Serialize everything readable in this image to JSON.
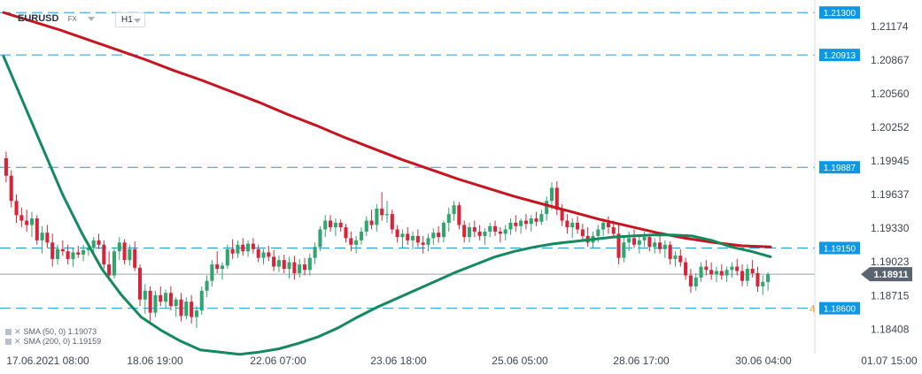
{
  "header": {
    "symbol": "EURUSD",
    "market": "FX",
    "timeframe": "H1"
  },
  "indicators": [
    {
      "label": "SMA (50, 0)",
      "value": "1.19073",
      "color": "#128a5e"
    },
    {
      "label": "SMA (200, 0)",
      "value": "1.19159",
      "color": "#c8141e"
    }
  ],
  "chart_data": {
    "type": "candlestick",
    "title": "EURUSD",
    "ylim": [
      1.1825,
      1.2135
    ],
    "y_ticks": [
      "1.21174",
      "1.20867",
      "1.20560",
      "1.20252",
      "1.19945",
      "1.19637",
      "1.19330",
      "1.19023",
      "1.18715",
      "1.18408"
    ],
    "x_ticks": [
      "17.06.2021  08:00",
      "18.06  19:00",
      "22.06  07:00",
      "23.06  18:00",
      "25.06  05:00",
      "28.06  17:00",
      "30.06  04:00",
      "01.07  15:00"
    ],
    "current_price": "1.18911",
    "horizontal_levels": [
      "1.21300",
      "1.20913",
      "1.19887",
      "1.19150",
      "1.18600"
    ],
    "order_marker": "4",
    "candles_ohlc": [
      [
        1.1997,
        1.2003,
        1.1975,
        1.1981
      ],
      [
        1.1981,
        1.1986,
        1.1952,
        1.1958
      ],
      [
        1.1958,
        1.1964,
        1.1938,
        1.1945
      ],
      [
        1.1945,
        1.1952,
        1.1934,
        1.194
      ],
      [
        1.194,
        1.195,
        1.193,
        1.1936
      ],
      [
        1.1936,
        1.1948,
        1.1925,
        1.1942
      ],
      [
        1.1942,
        1.1945,
        1.1918,
        1.1922
      ],
      [
        1.1922,
        1.1935,
        1.191,
        1.1929
      ],
      [
        1.1929,
        1.1936,
        1.1915,
        1.192
      ],
      [
        1.192,
        1.1928,
        1.1898,
        1.1905
      ],
      [
        1.1905,
        1.1918,
        1.19,
        1.1914
      ],
      [
        1.1914,
        1.1922,
        1.1908,
        1.1912
      ],
      [
        1.1912,
        1.1918,
        1.19,
        1.1905
      ],
      [
        1.1905,
        1.1915,
        1.1898,
        1.1911
      ],
      [
        1.1911,
        1.1917,
        1.1906,
        1.1909
      ],
      [
        1.1909,
        1.1918,
        1.1903,
        1.1913
      ],
      [
        1.1913,
        1.192,
        1.1908,
        1.1915
      ],
      [
        1.1915,
        1.1925,
        1.191,
        1.1922
      ],
      [
        1.1922,
        1.1928,
        1.1914,
        1.1918
      ],
      [
        1.1918,
        1.1922,
        1.1896,
        1.19
      ],
      [
        1.19,
        1.1912,
        1.1885,
        1.189
      ],
      [
        1.189,
        1.1916,
        1.1887,
        1.1912
      ],
      [
        1.1912,
        1.1925,
        1.1904,
        1.192
      ],
      [
        1.192,
        1.1923,
        1.19,
        1.1904
      ],
      [
        1.1904,
        1.1918,
        1.1899,
        1.1914
      ],
      [
        1.1914,
        1.1921,
        1.1894,
        1.1897
      ],
      [
        1.1897,
        1.19,
        1.1862,
        1.1868
      ],
      [
        1.1868,
        1.1882,
        1.1855,
        1.1876
      ],
      [
        1.1876,
        1.188,
        1.1848,
        1.1856
      ],
      [
        1.1856,
        1.1876,
        1.1852,
        1.1872
      ],
      [
        1.1872,
        1.188,
        1.1862,
        1.1866
      ],
      [
        1.1866,
        1.1877,
        1.186,
        1.1874
      ],
      [
        1.1874,
        1.188,
        1.1858,
        1.1862
      ],
      [
        1.1862,
        1.187,
        1.1852,
        1.1868
      ],
      [
        1.1868,
        1.1874,
        1.1848,
        1.1853
      ],
      [
        1.1853,
        1.187,
        1.185,
        1.1866
      ],
      [
        1.1866,
        1.1872,
        1.1846,
        1.1852
      ],
      [
        1.1852,
        1.1862,
        1.1842,
        1.1858
      ],
      [
        1.1858,
        1.188,
        1.1854,
        1.1876
      ],
      [
        1.1876,
        1.189,
        1.187,
        1.1885
      ],
      [
        1.1885,
        1.1904,
        1.188,
        1.19
      ],
      [
        1.19,
        1.1912,
        1.1892,
        1.1896
      ],
      [
        1.1896,
        1.1902,
        1.1886,
        1.1899
      ],
      [
        1.1899,
        1.1918,
        1.1896,
        1.1914
      ],
      [
        1.1914,
        1.1923,
        1.1905,
        1.191
      ],
      [
        1.191,
        1.1922,
        1.1906,
        1.1918
      ],
      [
        1.1918,
        1.1924,
        1.1908,
        1.1912
      ],
      [
        1.1912,
        1.1922,
        1.1907,
        1.1919
      ],
      [
        1.1919,
        1.1924,
        1.191,
        1.1914
      ],
      [
        1.1914,
        1.1918,
        1.1902,
        1.1906
      ],
      [
        1.1906,
        1.1914,
        1.19,
        1.1911
      ],
      [
        1.1911,
        1.1917,
        1.1903,
        1.1907
      ],
      [
        1.1907,
        1.1913,
        1.1894,
        1.1898
      ],
      [
        1.1898,
        1.1908,
        1.1893,
        1.1904
      ],
      [
        1.1904,
        1.1909,
        1.1892,
        1.1896
      ],
      [
        1.1896,
        1.1907,
        1.1887,
        1.1902
      ],
      [
        1.1902,
        1.1908,
        1.1886,
        1.1892
      ],
      [
        1.1892,
        1.1905,
        1.1888,
        1.19
      ],
      [
        1.19,
        1.1906,
        1.189,
        1.1895
      ],
      [
        1.1895,
        1.191,
        1.189,
        1.1906
      ],
      [
        1.1906,
        1.192,
        1.19,
        1.1916
      ],
      [
        1.1916,
        1.1935,
        1.1912,
        1.1932
      ],
      [
        1.1932,
        1.1945,
        1.1925,
        1.194
      ],
      [
        1.194,
        1.1945,
        1.193,
        1.1934
      ],
      [
        1.1934,
        1.1942,
        1.1926,
        1.1938
      ],
      [
        1.1938,
        1.1941,
        1.193,
        1.1934
      ],
      [
        1.1934,
        1.1937,
        1.192,
        1.1924
      ],
      [
        1.1924,
        1.193,
        1.1912,
        1.1918
      ],
      [
        1.1918,
        1.1926,
        1.191,
        1.1922
      ],
      [
        1.1922,
        1.1934,
        1.1918,
        1.193
      ],
      [
        1.193,
        1.1944,
        1.1926,
        1.194
      ],
      [
        1.194,
        1.195,
        1.1932,
        1.1936
      ],
      [
        1.1936,
        1.1955,
        1.193,
        1.1951
      ],
      [
        1.1951,
        1.1966,
        1.194,
        1.1945
      ],
      [
        1.1945,
        1.1958,
        1.1938,
        1.1946
      ],
      [
        1.1946,
        1.195,
        1.1928,
        1.1932
      ],
      [
        1.1932,
        1.1936,
        1.192,
        1.1925
      ],
      [
        1.1925,
        1.1932,
        1.1915,
        1.1928
      ],
      [
        1.1928,
        1.1934,
        1.1918,
        1.1922
      ],
      [
        1.1922,
        1.193,
        1.1914,
        1.1926
      ],
      [
        1.1926,
        1.1932,
        1.1916,
        1.192
      ],
      [
        1.192,
        1.1926,
        1.191,
        1.1918
      ],
      [
        1.1918,
        1.1928,
        1.1912,
        1.1924
      ],
      [
        1.1924,
        1.1933,
        1.1918,
        1.1929
      ],
      [
        1.1929,
        1.1935,
        1.192,
        1.1925
      ],
      [
        1.1925,
        1.194,
        1.192,
        1.1938
      ],
      [
        1.1938,
        1.1952,
        1.193,
        1.1946
      ],
      [
        1.1946,
        1.1958,
        1.194,
        1.1954
      ],
      [
        1.1954,
        1.1957,
        1.1932,
        1.1936
      ],
      [
        1.1936,
        1.194,
        1.192,
        1.1925
      ],
      [
        1.1925,
        1.1938,
        1.192,
        1.1934
      ],
      [
        1.1934,
        1.194,
        1.1925,
        1.193
      ],
      [
        1.193,
        1.1936,
        1.1922,
        1.1926
      ],
      [
        1.1926,
        1.1933,
        1.1918,
        1.193
      ],
      [
        1.193,
        1.1938,
        1.1925,
        1.1935
      ],
      [
        1.1935,
        1.194,
        1.1926,
        1.193
      ],
      [
        1.193,
        1.1934,
        1.192,
        1.1928
      ],
      [
        1.1928,
        1.1936,
        1.1922,
        1.1932
      ],
      [
        1.1932,
        1.1942,
        1.1927,
        1.1938
      ],
      [
        1.1938,
        1.1945,
        1.193,
        1.1935
      ],
      [
        1.1935,
        1.1942,
        1.1928,
        1.194
      ],
      [
        1.194,
        1.1946,
        1.1932,
        1.1937
      ],
      [
        1.1937,
        1.1945,
        1.193,
        1.1942
      ],
      [
        1.1942,
        1.1948,
        1.1935,
        1.1939
      ],
      [
        1.1939,
        1.195,
        1.1936,
        1.1946
      ],
      [
        1.1946,
        1.1962,
        1.194,
        1.1958
      ],
      [
        1.1958,
        1.1975,
        1.195,
        1.197
      ],
      [
        1.197,
        1.1976,
        1.1945,
        1.195
      ],
      [
        1.195,
        1.1955,
        1.1935,
        1.194
      ],
      [
        1.194,
        1.1946,
        1.1928,
        1.1934
      ],
      [
        1.1934,
        1.1942,
        1.1924,
        1.1938
      ],
      [
        1.1938,
        1.1944,
        1.1928,
        1.1932
      ],
      [
        1.1932,
        1.1937,
        1.1922,
        1.1926
      ],
      [
        1.1926,
        1.1934,
        1.1916,
        1.192
      ],
      [
        1.192,
        1.193,
        1.1915,
        1.1926
      ],
      [
        1.1926,
        1.1936,
        1.192,
        1.1932
      ],
      [
        1.1932,
        1.1942,
        1.1926,
        1.1938
      ],
      [
        1.1938,
        1.1944,
        1.1928,
        1.1934
      ],
      [
        1.1934,
        1.194,
        1.1924,
        1.1928
      ],
      [
        1.1928,
        1.1936,
        1.19,
        1.1906
      ],
      [
        1.1906,
        1.1925,
        1.1902,
        1.192
      ],
      [
        1.192,
        1.193,
        1.1912,
        1.1924
      ],
      [
        1.1924,
        1.1932,
        1.1915,
        1.1918
      ],
      [
        1.1918,
        1.1926,
        1.191,
        1.1922
      ],
      [
        1.1922,
        1.193,
        1.1916,
        1.1925
      ],
      [
        1.1925,
        1.1928,
        1.1912,
        1.1916
      ],
      [
        1.1916,
        1.1924,
        1.191,
        1.192
      ],
      [
        1.192,
        1.1926,
        1.191,
        1.1914
      ],
      [
        1.1914,
        1.1922,
        1.1906,
        1.1918
      ],
      [
        1.1918,
        1.1921,
        1.19,
        1.1905
      ],
      [
        1.1905,
        1.1912,
        1.1898,
        1.1908
      ],
      [
        1.1908,
        1.1914,
        1.1898,
        1.1902
      ],
      [
        1.1902,
        1.1906,
        1.1886,
        1.189
      ],
      [
        1.189,
        1.1896,
        1.1874,
        1.188
      ],
      [
        1.188,
        1.1892,
        1.1876,
        1.1888
      ],
      [
        1.1888,
        1.1902,
        1.1884,
        1.1898
      ],
      [
        1.1898,
        1.1904,
        1.189,
        1.1895
      ],
      [
        1.1895,
        1.1902,
        1.1886,
        1.1891
      ],
      [
        1.1891,
        1.1898,
        1.1884,
        1.1894
      ],
      [
        1.1894,
        1.19,
        1.1886,
        1.189
      ],
      [
        1.189,
        1.1898,
        1.1884,
        1.1895
      ],
      [
        1.1895,
        1.1902,
        1.1888,
        1.1898
      ],
      [
        1.1898,
        1.1905,
        1.189,
        1.1894
      ],
      [
        1.1894,
        1.19,
        1.188,
        1.1885
      ],
      [
        1.1885,
        1.19,
        1.188,
        1.1896
      ],
      [
        1.1896,
        1.1904,
        1.1888,
        1.1892
      ],
      [
        1.1892,
        1.1898,
        1.1875,
        1.188
      ],
      [
        1.188,
        1.189,
        1.1872,
        1.1884
      ],
      [
        1.1884,
        1.1893,
        1.1876,
        1.1891
      ]
    ],
    "sma50": [
      1.209,
      1.2048,
      1.2006,
      1.1964,
      1.1928,
      1.1896,
      1.1872,
      1.1852,
      1.184,
      1.183,
      1.1822,
      1.182,
      1.1818,
      1.182,
      1.1823,
      1.1828,
      1.1834,
      1.1842,
      1.1852,
      1.1861,
      1.1869,
      1.1877,
      1.1885,
      1.1893,
      1.19,
      1.1907,
      1.1912,
      1.1916,
      1.1919,
      1.1921,
      1.1923,
      1.1925,
      1.1926,
      1.1927,
      1.1927,
      1.1926,
      1.1922,
      1.1916,
      1.1912,
      1.1907
    ],
    "sma200": [
      1.213,
      1.2122,
      1.2114,
      1.2105,
      1.2096,
      1.2087,
      1.2077,
      1.2068,
      1.2058,
      1.2048,
      1.2037,
      1.2027,
      1.2016,
      1.2006,
      1.1996,
      1.1987,
      1.1978,
      1.197,
      1.1962,
      1.1955,
      1.1948,
      1.1941,
      1.1935,
      1.1929,
      1.1924,
      1.192,
      1.1917,
      1.1916
    ]
  }
}
